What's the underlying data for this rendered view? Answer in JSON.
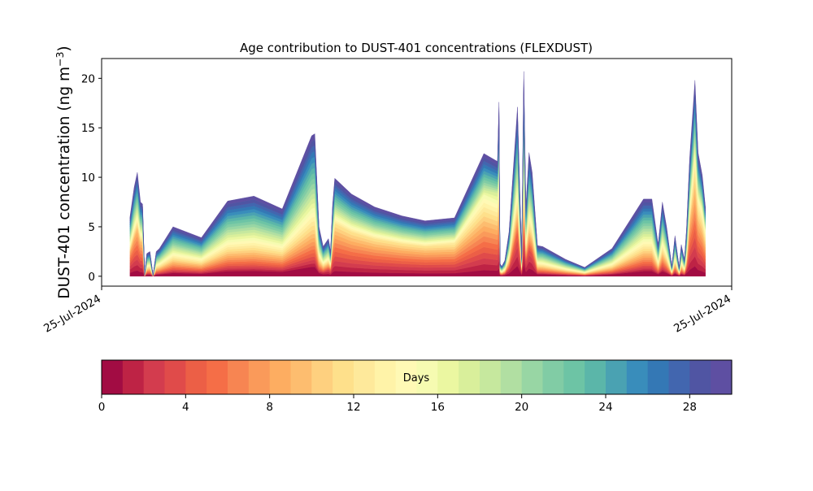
{
  "chart_data": {
    "type": "area",
    "stacked": true,
    "title": "Age contribution to DUST-401 concentrations (FLEXDUST)",
    "ylabel_main": "DUST-401 concentration (ng m",
    "ylabel_sup": "−3",
    "ylabel_close": ")",
    "xlabel": "",
    "ylim": [
      -1,
      22
    ],
    "xlim": [
      0,
      30
    ],
    "yticks": [
      0,
      5,
      10,
      15,
      20
    ],
    "xtick_labels": [
      {
        "x": 0,
        "label": "25-Jul-2024"
      },
      {
        "x": 30,
        "label": "25-Jul-2024"
      }
    ],
    "grid": false,
    "series_count": 30,
    "x": [
      1.35,
      1.55,
      1.7,
      1.85,
      1.95,
      2.05,
      2.15,
      2.3,
      2.45,
      2.6,
      2.75,
      3.4,
      4.75,
      6.0,
      7.25,
      8.6,
      10.0,
      10.15,
      10.35,
      10.55,
      10.8,
      10.9,
      11.0,
      11.1,
      11.9,
      13.0,
      14.3,
      15.4,
      16.8,
      18.2,
      18.85,
      18.92,
      18.97,
      19.05,
      19.2,
      19.4,
      19.8,
      20.0,
      20.1,
      20.2,
      20.35,
      20.5,
      20.75,
      21.0,
      22.1,
      23.0,
      24.3,
      25.8,
      26.2,
      26.5,
      26.7,
      26.9,
      27.15,
      27.3,
      27.5,
      27.6,
      27.75,
      27.85,
      28.0,
      28.25,
      28.4,
      28.6,
      28.75
    ],
    "totals": [
      6.0,
      9.0,
      10.5,
      7.5,
      7.3,
      0.2,
      2.3,
      2.5,
      0.1,
      2.5,
      2.8,
      5.0,
      3.9,
      7.6,
      8.1,
      6.8,
      14.2,
      14.4,
      5.0,
      3.0,
      3.8,
      2.5,
      7.3,
      9.9,
      8.3,
      7.0,
      6.1,
      5.6,
      5.9,
      12.4,
      11.6,
      17.6,
      1.3,
      1.0,
      1.6,
      4.5,
      17.1,
      2.0,
      20.7,
      7.0,
      12.5,
      10.5,
      3.1,
      3.0,
      1.7,
      0.9,
      2.8,
      7.8,
      7.8,
      3.2,
      7.5,
      5.0,
      1.0,
      4.1,
      0.9,
      3.2,
      1.7,
      4.8,
      12.0,
      19.8,
      12.5,
      10.2,
      7.0
    ],
    "young_counts": [
      8,
      9,
      10,
      10,
      10,
      1,
      1,
      1,
      1,
      1,
      1,
      1,
      1,
      1,
      1,
      1,
      1,
      1,
      1,
      2,
      3,
      5,
      8,
      12,
      12,
      12,
      12,
      12,
      13,
      16,
      18,
      18,
      2,
      2,
      2,
      3,
      5,
      5,
      6,
      4,
      4,
      4,
      1,
      1,
      1,
      1,
      1,
      1,
      1,
      1,
      1,
      1,
      1,
      1,
      1,
      1,
      1,
      2,
      10,
      14,
      14,
      16,
      16
    ],
    "colorbar": {
      "label": "Days",
      "min": 0,
      "max": 30,
      "ticks": [
        0,
        4,
        8,
        12,
        16,
        20,
        24,
        28
      ],
      "colors": [
        "#a20c43",
        "#be2345",
        "#d33c4e",
        "#e04b4a",
        "#ec5f46",
        "#f56e47",
        "#f78552",
        "#fa9a5a",
        "#fdad61",
        "#fdbd6f",
        "#fed07f",
        "#fee08b",
        "#fee99b",
        "#fff3a8",
        "#fff9b5",
        "#f6fbb1",
        "#ebf7a1",
        "#d9ef9b",
        "#c6e89e",
        "#b1dfa2",
        "#98d6a4",
        "#81cca5",
        "#6dc4a5",
        "#5bb6a9",
        "#4aa2b2",
        "#398dbb",
        "#3478b5",
        "#4266af",
        "#5055a3",
        "#5e4fa2"
      ]
    }
  }
}
